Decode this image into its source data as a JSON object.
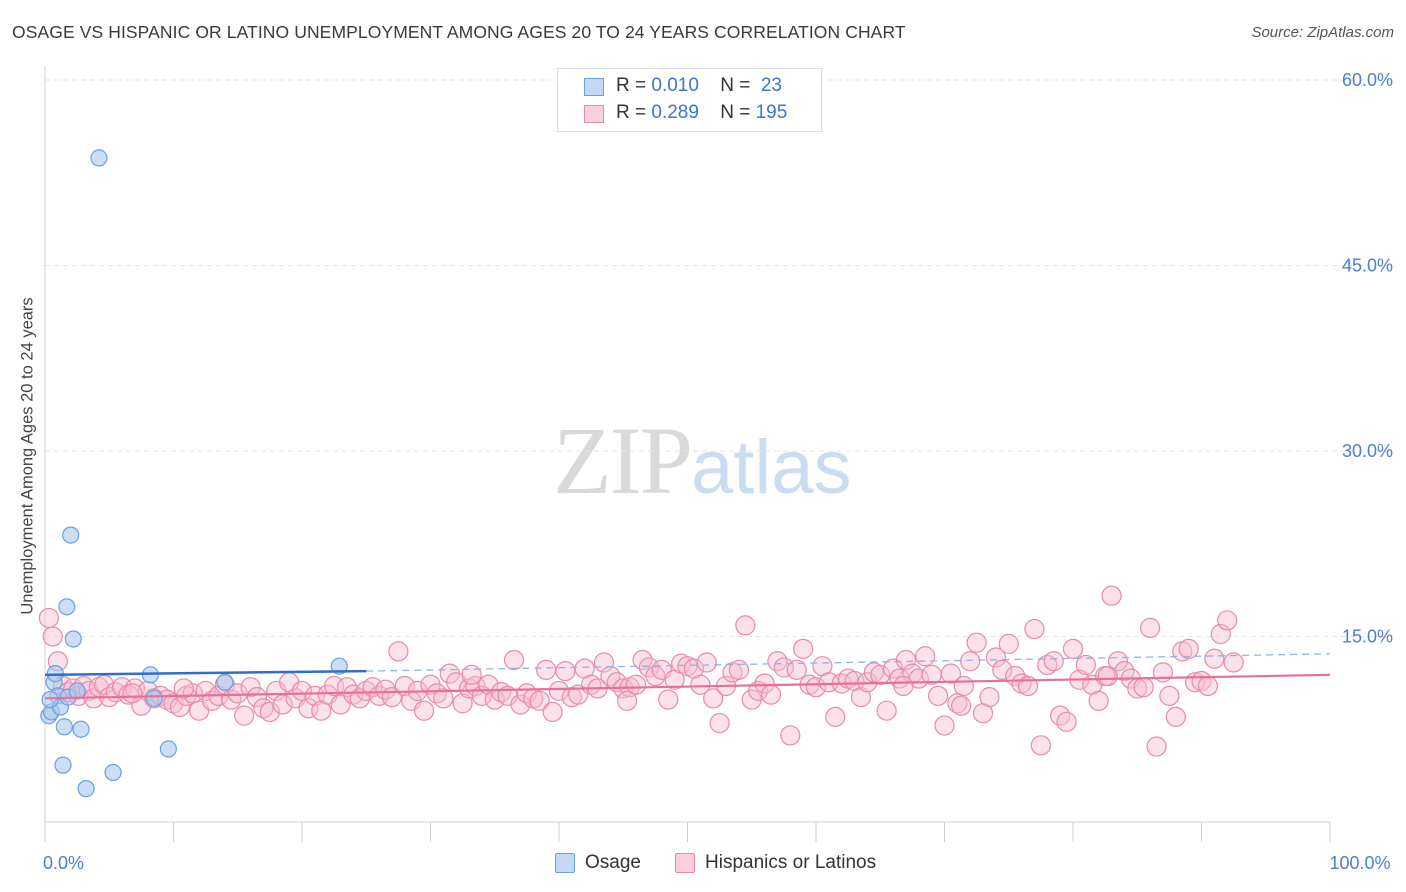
{
  "title": "OSAGE VS HISPANIC OR LATINO UNEMPLOYMENT AMONG AGES 20 TO 24 YEARS CORRELATION CHART",
  "source": "Source: ZipAtlas.com",
  "watermark": {
    "zip": "ZIP",
    "atlas": "atlas"
  },
  "legend": {
    "osage": {
      "r_label": "R = ",
      "r_value": "0.010",
      "n_label": "N = ",
      "n_value": " 23"
    },
    "hispanic": {
      "r_label": "R = ",
      "r_value": "0.289",
      "n_label": "N = ",
      "n_value": "195"
    }
  },
  "bottom_legend": {
    "osage": "Osage",
    "hispanic": "Hispanics or Latinos"
  },
  "colors": {
    "osage_fill": "#a9c8f0",
    "osage_stroke": "#6d9fdc",
    "osage_line": "#2f6fc9",
    "hisp_fill": "#f6bcd0",
    "hisp_stroke": "#e88aab",
    "hisp_line": "#e86f99",
    "grid": "#e5e5e5",
    "tick_text": "#4a7fd4"
  },
  "chart_data": {
    "type": "scatter",
    "title": "OSAGE VS HISPANIC OR LATINO UNEMPLOYMENT AMONG AGES 20 TO 24 YEARS CORRELATION CHART",
    "xlabel": "",
    "ylabel": "Unemployment Among Ages 20 to 24 years",
    "xlim": [
      0,
      100
    ],
    "ylim": [
      0,
      60
    ],
    "y_ticks": [
      {
        "v": 15,
        "label": "15.0%"
      },
      {
        "v": 30,
        "label": "30.0%"
      },
      {
        "v": 45,
        "label": "45.0%"
      },
      {
        "v": 60,
        "label": "60.0%"
      }
    ],
    "x_ticks": [
      {
        "v": 0,
        "label": "0.0%"
      },
      {
        "v": 100,
        "label": "100.0%"
      }
    ],
    "series": [
      {
        "name": "Osage",
        "trend": {
          "x0": 0,
          "y0": 11.9,
          "x1": 25,
          "y1": 12.2,
          "dash_to": 100,
          "dash_y1": 13.6
        },
        "points": [
          [
            0.3,
            8.6
          ],
          [
            0.5,
            8.9
          ],
          [
            0.7,
            11.3
          ],
          [
            0.8,
            12.0
          ],
          [
            1.0,
            10.2
          ],
          [
            1.2,
            9.3
          ],
          [
            1.4,
            4.6
          ],
          [
            1.5,
            7.7
          ],
          [
            1.7,
            17.4
          ],
          [
            1.8,
            10.1
          ],
          [
            2.0,
            23.2
          ],
          [
            2.2,
            14.8
          ],
          [
            2.5,
            10.6
          ],
          [
            2.8,
            7.5
          ],
          [
            3.2,
            2.7
          ],
          [
            4.2,
            53.7
          ],
          [
            5.3,
            4.0
          ],
          [
            8.2,
            11.9
          ],
          [
            8.5,
            10.0
          ],
          [
            9.6,
            5.9
          ],
          [
            14.0,
            11.3
          ],
          [
            22.9,
            12.6
          ],
          [
            0.4,
            9.9
          ]
        ]
      },
      {
        "name": "Hispanics or Latinos",
        "trend": {
          "x0": 0,
          "y0": 10.0,
          "x1": 100,
          "y1": 11.9
        },
        "points": [
          [
            0.3,
            16.5
          ],
          [
            0.6,
            15.0
          ],
          [
            1.0,
            13.0
          ],
          [
            1.4,
            11.0
          ],
          [
            1.8,
            10.5
          ],
          [
            2.2,
            10.8
          ],
          [
            2.6,
            10.2
          ],
          [
            3.0,
            11.0
          ],
          [
            3.4,
            10.6
          ],
          [
            3.8,
            10.0
          ],
          [
            4.2,
            10.9
          ],
          [
            4.6,
            11.1
          ],
          [
            5.0,
            10.1
          ],
          [
            5.5,
            10.5
          ],
          [
            6.0,
            10.9
          ],
          [
            6.5,
            10.3
          ],
          [
            7.0,
            10.8
          ],
          [
            7.5,
            9.4
          ],
          [
            8.0,
            10.6
          ],
          [
            8.5,
            10.0
          ],
          [
            9.0,
            10.2
          ],
          [
            9.5,
            9.9
          ],
          [
            10.0,
            9.6
          ],
          [
            10.5,
            9.3
          ],
          [
            11.0,
            10.2
          ],
          [
            11.5,
            10.4
          ],
          [
            12.0,
            9.0
          ],
          [
            12.5,
            10.6
          ],
          [
            13.0,
            9.8
          ],
          [
            13.5,
            10.2
          ],
          [
            14.0,
            11.1
          ],
          [
            14.5,
            9.9
          ],
          [
            15.0,
            10.4
          ],
          [
            15.5,
            8.6
          ],
          [
            16.0,
            10.9
          ],
          [
            16.5,
            10.1
          ],
          [
            17.0,
            9.2
          ],
          [
            17.5,
            8.9
          ],
          [
            18.0,
            10.6
          ],
          [
            18.5,
            9.5
          ],
          [
            19.0,
            11.3
          ],
          [
            19.5,
            10.0
          ],
          [
            20.0,
            10.6
          ],
          [
            20.5,
            9.2
          ],
          [
            21.0,
            10.2
          ],
          [
            21.5,
            9.0
          ],
          [
            22.0,
            10.3
          ],
          [
            22.5,
            11.0
          ],
          [
            23.0,
            9.5
          ],
          [
            23.5,
            10.9
          ],
          [
            24.0,
            10.3
          ],
          [
            24.5,
            10.0
          ],
          [
            25.0,
            10.6
          ],
          [
            25.5,
            10.9
          ],
          [
            26.0,
            10.2
          ],
          [
            26.5,
            10.7
          ],
          [
            27.0,
            10.1
          ],
          [
            27.5,
            13.8
          ],
          [
            28.0,
            11.0
          ],
          [
            28.5,
            9.8
          ],
          [
            29.0,
            10.6
          ],
          [
            29.5,
            9.0
          ],
          [
            30.0,
            11.1
          ],
          [
            30.5,
            10.4
          ],
          [
            31.0,
            10.0
          ],
          [
            31.5,
            12.0
          ],
          [
            32.0,
            11.3
          ],
          [
            32.5,
            9.6
          ],
          [
            33.0,
            10.8
          ],
          [
            33.5,
            11.0
          ],
          [
            34.0,
            10.2
          ],
          [
            34.5,
            11.1
          ],
          [
            35.0,
            9.9
          ],
          [
            35.5,
            10.5
          ],
          [
            36.0,
            10.2
          ],
          [
            36.5,
            13.1
          ],
          [
            37.0,
            9.5
          ],
          [
            37.5,
            10.4
          ],
          [
            38.0,
            10.0
          ],
          [
            38.5,
            9.8
          ],
          [
            39.0,
            12.3
          ],
          [
            39.5,
            8.9
          ],
          [
            40.0,
            10.6
          ],
          [
            40.5,
            12.2
          ],
          [
            41.0,
            10.1
          ],
          [
            41.5,
            10.3
          ],
          [
            42.0,
            12.4
          ],
          [
            42.5,
            11.1
          ],
          [
            43.0,
            10.8
          ],
          [
            43.5,
            12.9
          ],
          [
            44.0,
            11.8
          ],
          [
            44.5,
            11.3
          ],
          [
            45.0,
            10.8
          ],
          [
            45.5,
            10.9
          ],
          [
            46.0,
            11.1
          ],
          [
            46.5,
            13.1
          ],
          [
            47.0,
            12.5
          ],
          [
            47.5,
            11.8
          ],
          [
            48.0,
            12.3
          ],
          [
            48.5,
            9.9
          ],
          [
            49.0,
            11.5
          ],
          [
            49.5,
            12.8
          ],
          [
            50.0,
            12.6
          ],
          [
            50.5,
            12.4
          ],
          [
            51.0,
            11.1
          ],
          [
            51.5,
            12.9
          ],
          [
            52.0,
            10.0
          ],
          [
            52.5,
            8.0
          ],
          [
            53.0,
            11.0
          ],
          [
            53.5,
            12.1
          ],
          [
            54.0,
            12.3
          ],
          [
            54.5,
            15.9
          ],
          [
            55.0,
            9.9
          ],
          [
            55.5,
            10.6
          ],
          [
            56.0,
            11.2
          ],
          [
            56.5,
            10.3
          ],
          [
            57.0,
            13.0
          ],
          [
            57.5,
            12.5
          ],
          [
            58.0,
            7.0
          ],
          [
            58.5,
            12.3
          ],
          [
            59.0,
            14.0
          ],
          [
            59.5,
            11.1
          ],
          [
            60.0,
            10.9
          ],
          [
            60.5,
            12.6
          ],
          [
            61.0,
            11.3
          ],
          [
            61.5,
            8.5
          ],
          [
            62.0,
            11.2
          ],
          [
            62.5,
            11.6
          ],
          [
            63.0,
            11.4
          ],
          [
            63.5,
            10.1
          ],
          [
            64.0,
            11.3
          ],
          [
            64.5,
            12.1
          ],
          [
            65.0,
            11.9
          ],
          [
            65.5,
            9.0
          ],
          [
            66.0,
            12.4
          ],
          [
            66.5,
            11.6
          ],
          [
            67.0,
            13.1
          ],
          [
            67.5,
            12.0
          ],
          [
            68.0,
            11.6
          ],
          [
            68.5,
            13.4
          ],
          [
            69.0,
            11.9
          ],
          [
            69.5,
            10.2
          ],
          [
            70.0,
            7.8
          ],
          [
            70.5,
            12.0
          ],
          [
            71.0,
            9.6
          ],
          [
            71.5,
            11.0
          ],
          [
            72.0,
            13.0
          ],
          [
            72.5,
            14.5
          ],
          [
            73.0,
            8.8
          ],
          [
            73.5,
            10.1
          ],
          [
            74.0,
            13.3
          ],
          [
            74.5,
            12.3
          ],
          [
            75.0,
            14.4
          ],
          [
            75.5,
            11.8
          ],
          [
            76.0,
            11.2
          ],
          [
            76.5,
            11.0
          ],
          [
            77.0,
            15.6
          ],
          [
            77.5,
            6.2
          ],
          [
            78.0,
            12.7
          ],
          [
            78.5,
            13.0
          ],
          [
            79.0,
            8.6
          ],
          [
            79.5,
            8.1
          ],
          [
            80.0,
            14.0
          ],
          [
            80.5,
            11.5
          ],
          [
            81.0,
            12.7
          ],
          [
            81.5,
            11.1
          ],
          [
            82.0,
            9.8
          ],
          [
            82.5,
            11.8
          ],
          [
            83.0,
            18.3
          ],
          [
            83.5,
            13.0
          ],
          [
            84.0,
            12.2
          ],
          [
            84.5,
            11.6
          ],
          [
            85.0,
            10.8
          ],
          [
            85.5,
            10.9
          ],
          [
            86.0,
            15.7
          ],
          [
            86.5,
            6.1
          ],
          [
            87.0,
            12.1
          ],
          [
            87.5,
            10.2
          ],
          [
            88.0,
            8.5
          ],
          [
            88.5,
            13.8
          ],
          [
            89.0,
            14.0
          ],
          [
            89.5,
            11.3
          ],
          [
            90.0,
            11.4
          ],
          [
            90.5,
            11.0
          ],
          [
            91.0,
            13.2
          ],
          [
            91.5,
            15.2
          ],
          [
            92.0,
            16.3
          ],
          [
            92.5,
            12.9
          ],
          [
            10.8,
            10.8
          ],
          [
            6.8,
            10.4
          ],
          [
            33.2,
            11.9
          ],
          [
            45.3,
            9.8
          ],
          [
            71.3,
            9.4
          ],
          [
            82.7,
            11.8
          ],
          [
            66.8,
            11.0
          ]
        ]
      }
    ]
  }
}
